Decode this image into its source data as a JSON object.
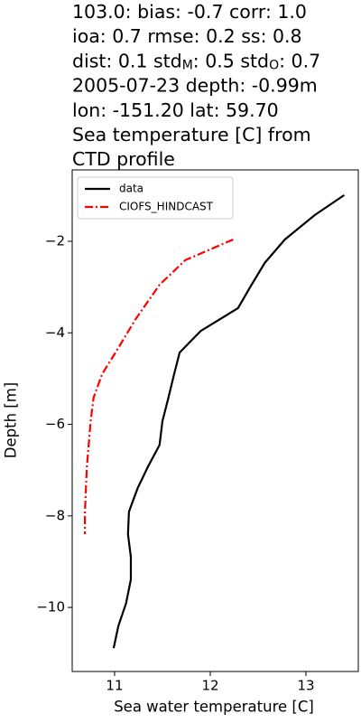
{
  "chart_data": {
    "type": "line",
    "title": [
      [
        "103.0: bias: -0.7  corr: 1.0"
      ],
      [
        "ioa: 0.7  rmse: 0.2  ss: 0.8"
      ],
      [
        "dist: 0.1  std",
        "M",
        ": 0.5  std",
        "O",
        ": 0.7"
      ],
      [
        "2005-07-23 depth: -0.99m"
      ],
      [
        "lon: -151.20 lat: 59.70"
      ],
      [
        "Sea temperature [C] from"
      ],
      [
        "CTD profile"
      ]
    ],
    "xlabel": "Sea water temperature [C]",
    "ylabel": "Depth [m]",
    "xlim": [
      10.557,
      13.547
    ],
    "ylim": [
      -11.4,
      -0.44
    ],
    "xticks": [
      11,
      12,
      13
    ],
    "yticks": [
      {
        "value": -2,
        "label": "−2"
      },
      {
        "value": -4,
        "label": "−4"
      },
      {
        "value": -6,
        "label": "−6"
      },
      {
        "value": -8,
        "label": "−8"
      },
      {
        "value": -10,
        "label": "−10"
      }
    ],
    "legend": "upper left",
    "series": [
      {
        "name": "data",
        "color": "#000000",
        "dash": "solid",
        "x": [
          13.4,
          13.09,
          12.78,
          12.57,
          12.42,
          12.29,
          11.9,
          11.68,
          11.62,
          11.56,
          11.5,
          11.47,
          11.35,
          11.24,
          11.15,
          11.14,
          11.17,
          11.17,
          11.12,
          11.04,
          10.99
        ],
        "values": [
          -0.99,
          -1.43,
          -1.96,
          -2.47,
          -2.99,
          -3.46,
          -3.96,
          -4.43,
          -4.92,
          -5.44,
          -5.93,
          -6.45,
          -6.92,
          -7.4,
          -7.91,
          -8.4,
          -8.9,
          -9.39,
          -9.91,
          -10.4,
          -10.89
        ]
      },
      {
        "name": "CIOFS_HINDCAST",
        "color": "#ff0000",
        "dash": "dashdot",
        "x": [
          12.24,
          11.74,
          11.47,
          11.22,
          11.01,
          10.87,
          10.78,
          10.75,
          10.73,
          10.71,
          10.7,
          10.69,
          10.69
        ],
        "values": [
          -1.96,
          -2.41,
          -2.95,
          -3.7,
          -4.43,
          -4.9,
          -5.42,
          -5.93,
          -6.43,
          -6.94,
          -7.43,
          -7.93,
          -8.4
        ]
      }
    ]
  }
}
